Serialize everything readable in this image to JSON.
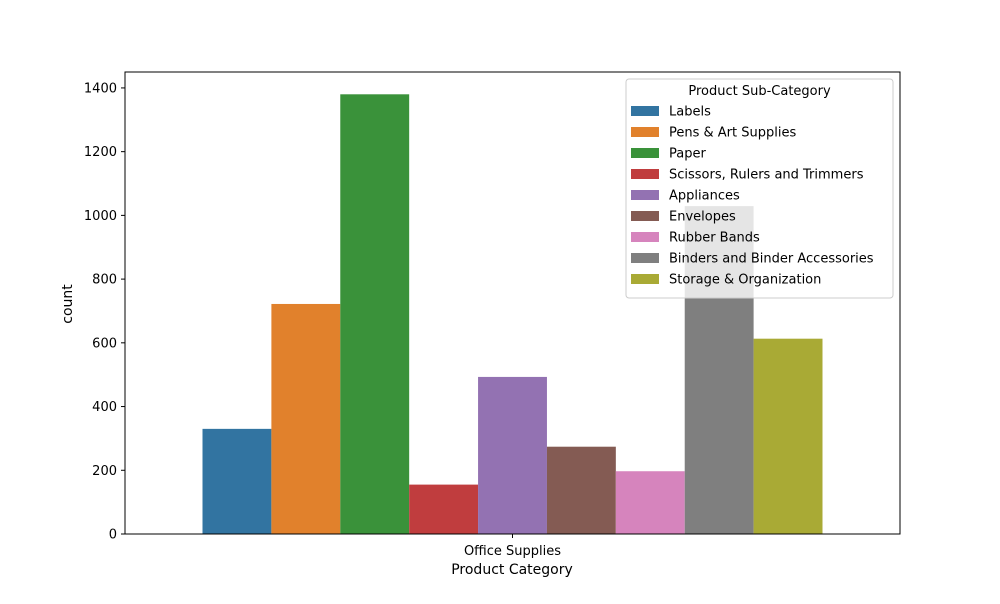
{
  "chart_data": {
    "type": "bar",
    "title": "",
    "xlabel": "Product Category",
    "ylabel": "count",
    "categories": [
      "Office Supplies"
    ],
    "ylim": [
      0,
      1450
    ],
    "yticks": [
      0,
      200,
      400,
      600,
      800,
      1000,
      1200,
      1400
    ],
    "grid": false,
    "legend": {
      "title": "Product Sub-Category",
      "position": "top-right"
    },
    "series": [
      {
        "name": "Labels",
        "color": "#3274a1",
        "values": [
          330
        ]
      },
      {
        "name": "Pens & Art Supplies",
        "color": "#e1812c",
        "values": [
          722
        ]
      },
      {
        "name": "Paper",
        "color": "#3a923a",
        "values": [
          1380
        ]
      },
      {
        "name": "Scissors, Rulers and Trimmers",
        "color": "#c03d3e",
        "values": [
          155
        ]
      },
      {
        "name": "Appliances",
        "color": "#9372b2",
        "values": [
          493
        ]
      },
      {
        "name": "Envelopes",
        "color": "#845b53",
        "values": [
          274
        ]
      },
      {
        "name": "Rubber Bands",
        "color": "#d684bd",
        "values": [
          197
        ]
      },
      {
        "name": "Binders and Binder Accessories",
        "color": "#7f7f7f",
        "values": [
          1029
        ]
      },
      {
        "name": "Storage & Organization",
        "color": "#a9aa35",
        "values": [
          613
        ]
      }
    ]
  }
}
